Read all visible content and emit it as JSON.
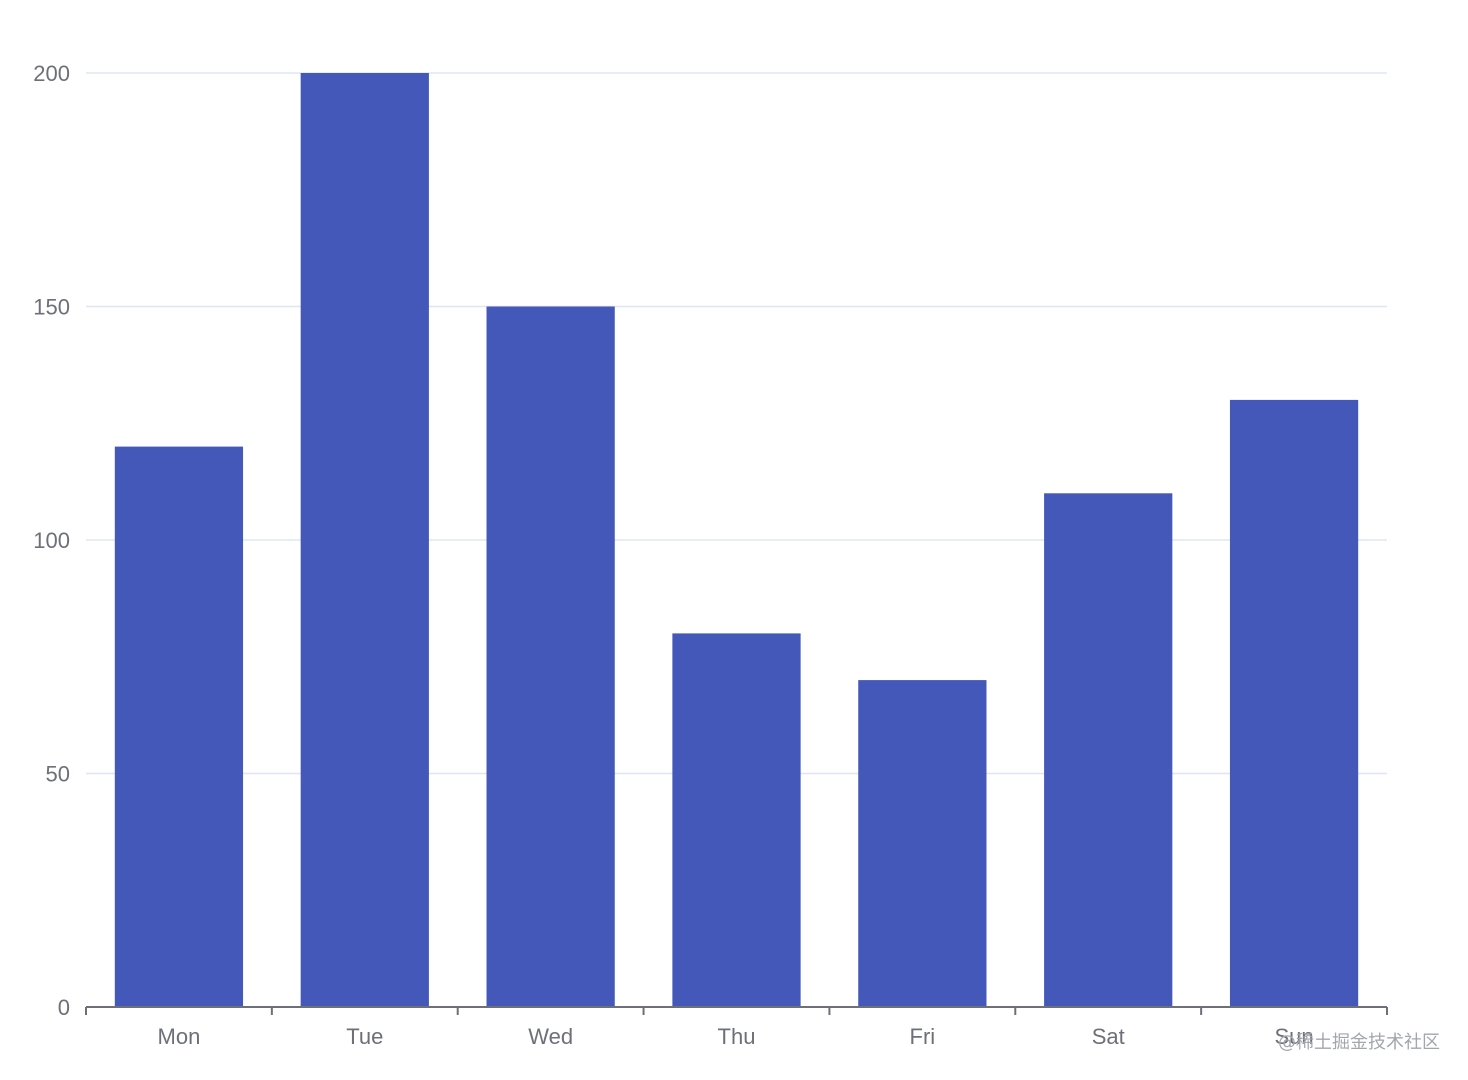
{
  "chart_data": {
    "type": "bar",
    "categories": [
      "Mon",
      "Tue",
      "Wed",
      "Thu",
      "Fri",
      "Sat",
      "Sun"
    ],
    "values": [
      120,
      200,
      150,
      80,
      70,
      110,
      130
    ],
    "y_ticks": [
      "0",
      "50",
      "100",
      "150",
      "200"
    ],
    "ylim": [
      0,
      200
    ],
    "grid": true,
    "bar_color": "#4358b9",
    "grid_color": "#e0e6f1",
    "axis_color": "#6e7079"
  },
  "watermark": "@稀土掘金技术社区"
}
